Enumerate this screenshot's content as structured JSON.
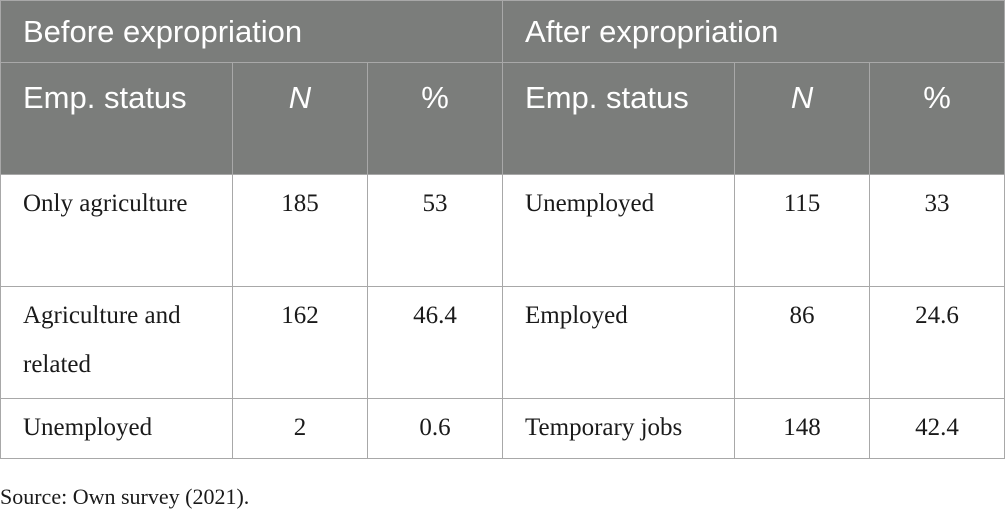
{
  "header": {
    "before_label": "Before expropriation",
    "after_label": "After expropriation"
  },
  "columns": {
    "status": "Emp. status",
    "n": "N",
    "pct": "%"
  },
  "rows": [
    {
      "before_status": "Only agriculture",
      "before_n": "185",
      "before_pct": "53",
      "after_status": "Unemployed",
      "after_n": "115",
      "after_pct": "33"
    },
    {
      "before_status": "Agriculture and related",
      "before_n": "162",
      "before_pct": "46.4",
      "after_status": "Employed",
      "after_n": "86",
      "after_pct": "24.6"
    },
    {
      "before_status": "Unemployed",
      "before_n": "2",
      "before_pct": "0.6",
      "after_status": "Temporary jobs",
      "after_n": "148",
      "after_pct": "42.4"
    }
  ],
  "source": "Source: Own survey (2021)."
}
